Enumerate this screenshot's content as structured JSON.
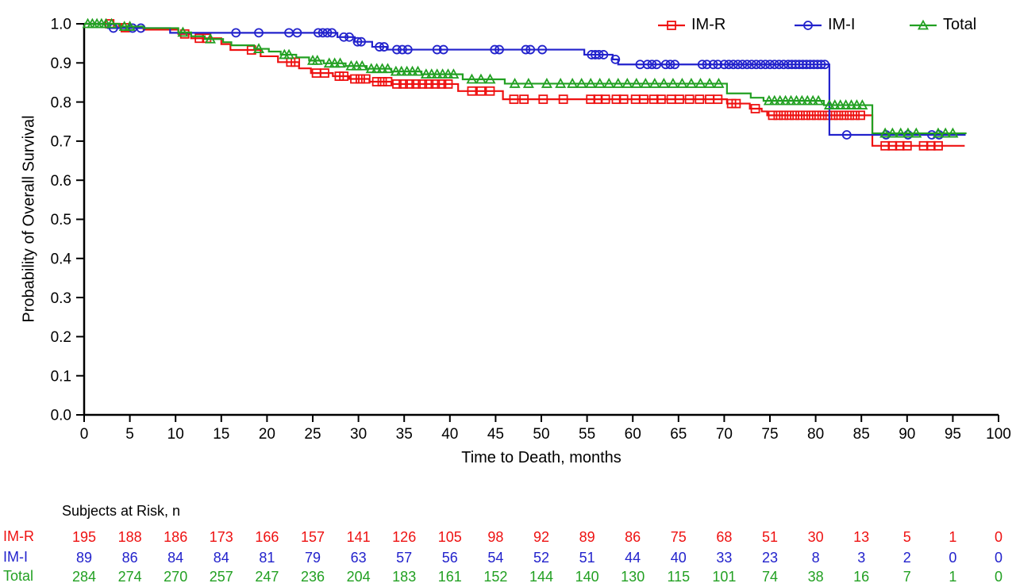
{
  "chart_data": {
    "type": "line",
    "subtype": "kaplan-meier-step-curves",
    "title": "",
    "xlabel": "Time to Death, months",
    "ylabel": "Probability of Overall Survival",
    "xlim": [
      0,
      100
    ],
    "ylim": [
      0.0,
      1.0
    ],
    "xticks": [
      0,
      5,
      10,
      15,
      20,
      25,
      30,
      35,
      40,
      45,
      50,
      55,
      60,
      65,
      70,
      75,
      80,
      85,
      90,
      95,
      100
    ],
    "yticks": [
      0.0,
      0.1,
      0.2,
      0.3,
      0.4,
      0.5,
      0.6,
      0.7,
      0.8,
      0.9,
      1.0
    ],
    "grid": false,
    "legend_position": "top-right",
    "axis_color": "#000000",
    "series": [
      {
        "name": "IM-R",
        "color": "#EE1111",
        "marker": "square",
        "end": 96.3,
        "steps": [
          [
            0,
            1.0
          ],
          [
            3.8,
            0.99
          ],
          [
            6.5,
            0.985
          ],
          [
            10.3,
            0.974
          ],
          [
            11.7,
            0.963
          ],
          [
            15,
            0.948
          ],
          [
            16,
            0.933
          ],
          [
            19.3,
            0.917
          ],
          [
            21.2,
            0.902
          ],
          [
            23.5,
            0.886
          ],
          [
            24.8,
            0.874
          ],
          [
            27.2,
            0.866
          ],
          [
            29,
            0.859
          ],
          [
            31.2,
            0.852
          ],
          [
            33.6,
            0.846
          ],
          [
            40.9,
            0.828
          ],
          [
            45.8,
            0.807
          ],
          [
            70.3,
            0.796
          ],
          [
            72.8,
            0.783
          ],
          [
            74.1,
            0.776
          ],
          [
            74.7,
            0.766
          ],
          [
            86.2,
            0.688
          ]
        ],
        "censors": [
          2.8,
          4.5,
          11,
          12.6,
          13.4,
          18.3,
          22.6,
          23.1,
          25.4,
          26.3,
          27.9,
          28.4,
          29.6,
          30.2,
          30.8,
          32,
          32.6,
          33.2,
          34.2,
          34.9,
          35.6,
          36.3,
          37,
          37.7,
          38.4,
          39.1,
          39.8,
          42.4,
          43.4,
          44.4,
          47,
          48.1,
          50.2,
          52.4,
          55.4,
          56.2,
          57,
          58.2,
          59,
          60.3,
          61.2,
          62.3,
          63.1,
          64.2,
          65.1,
          66.2,
          67.3,
          68.4,
          69.3,
          70.8,
          71.3,
          73.4,
          75.3,
          75.9,
          76.5,
          77.1,
          77.7,
          78.3,
          78.9,
          79.5,
          80.1,
          80.7,
          81.3,
          81.9,
          82.5,
          83.1,
          83.7,
          84.3,
          84.9,
          87.6,
          88.4,
          89.2,
          90,
          91.8,
          92.6,
          93.4
        ]
      },
      {
        "name": "IM-I",
        "color": "#2222CC",
        "marker": "circle",
        "end": 96.4,
        "steps": [
          [
            0,
            1.0
          ],
          [
            2.6,
            0.989
          ],
          [
            9.4,
            0.977
          ],
          [
            27.7,
            0.966
          ],
          [
            29.6,
            0.954
          ],
          [
            31.5,
            0.941
          ],
          [
            33.1,
            0.934
          ],
          [
            54.7,
            0.921
          ],
          [
            57.8,
            0.909
          ],
          [
            58.4,
            0.896
          ],
          [
            81.5,
            0.716
          ]
        ],
        "censors": [
          3.2,
          5.3,
          6.2,
          16.6,
          19.1,
          22.4,
          23.3,
          25.6,
          26.1,
          26.6,
          27.1,
          28.4,
          29,
          29.9,
          30.3,
          32.3,
          32.8,
          34.2,
          34.8,
          35.4,
          38.6,
          39.3,
          44.9,
          45.4,
          48.3,
          48.8,
          50.1,
          55.5,
          55.9,
          56.3,
          56.8,
          58.1,
          60.8,
          61.6,
          62.1,
          62.6,
          63.6,
          64.1,
          64.6,
          67.6,
          68.1,
          68.8,
          69.3,
          70,
          70.5,
          71,
          71.5,
          72,
          72.5,
          73,
          73.5,
          74,
          74.5,
          75,
          75.5,
          76,
          76.5,
          77,
          77.4,
          77.8,
          78.2,
          78.6,
          79,
          79.4,
          79.8,
          80.2,
          80.6,
          81,
          83.4,
          87.7,
          90.1,
          92.7,
          93.5
        ]
      },
      {
        "name": "Total",
        "color": "#22A022",
        "marker": "triangle",
        "end": 96.5,
        "steps": [
          [
            0,
            1.0
          ],
          [
            3.9,
            0.993
          ],
          [
            6.5,
            0.989
          ],
          [
            10.3,
            0.978
          ],
          [
            11.7,
            0.968
          ],
          [
            13.2,
            0.961
          ],
          [
            15.2,
            0.953
          ],
          [
            16.1,
            0.945
          ],
          [
            18.6,
            0.936
          ],
          [
            20.2,
            0.929
          ],
          [
            21.5,
            0.921
          ],
          [
            23.2,
            0.914
          ],
          [
            24.6,
            0.906
          ],
          [
            26.2,
            0.899
          ],
          [
            28.6,
            0.892
          ],
          [
            30.9,
            0.885
          ],
          [
            33.6,
            0.878
          ],
          [
            36.9,
            0.871
          ],
          [
            41.4,
            0.858
          ],
          [
            46,
            0.847
          ],
          [
            70.3,
            0.822
          ],
          [
            72.9,
            0.811
          ],
          [
            74.3,
            0.803
          ],
          [
            80.9,
            0.792
          ],
          [
            86.2,
            0.72
          ]
        ],
        "censors": [
          0.4,
          0.9,
          1.4,
          1.9,
          2.4,
          3.0,
          4.4,
          5.0,
          10.8,
          13.8,
          19.1,
          21.9,
          22.4,
          25,
          25.5,
          26.8,
          27.4,
          28,
          29.2,
          29.8,
          30.4,
          31.4,
          32,
          32.6,
          33.2,
          34.1,
          34.7,
          35.3,
          35.9,
          36.5,
          37.4,
          38,
          38.6,
          39.2,
          39.8,
          40.4,
          42.4,
          43.4,
          44.4,
          47.1,
          48.6,
          50.6,
          52.1,
          53.4,
          54.4,
          55.4,
          56.4,
          57.4,
          58.4,
          59.4,
          60.4,
          61.4,
          62.4,
          63.4,
          64.4,
          65.4,
          66.4,
          67.4,
          68.4,
          69.4,
          74.9,
          75.5,
          76.1,
          76.7,
          77.3,
          77.9,
          78.5,
          79.1,
          79.7,
          80.3,
          81.5,
          82.1,
          82.7,
          83.3,
          83.9,
          84.5,
          85.1,
          87.6,
          88.4,
          89.3,
          90.1,
          91,
          93.4,
          94.2,
          95
        ]
      }
    ],
    "risk_table": {
      "header": "Subjects at Risk, n",
      "times": [
        0,
        5,
        10,
        15,
        20,
        25,
        30,
        35,
        40,
        45,
        50,
        55,
        60,
        65,
        70,
        75,
        80,
        85,
        90,
        95,
        100
      ],
      "rows": [
        {
          "label": "IM-R",
          "color": "#EE1111",
          "counts": [
            195,
            188,
            186,
            173,
            166,
            157,
            141,
            126,
            105,
            98,
            92,
            89,
            86,
            75,
            68,
            51,
            30,
            13,
            5,
            1,
            0
          ]
        },
        {
          "label": "IM-I",
          "color": "#2222CC",
          "counts": [
            89,
            86,
            84,
            84,
            81,
            79,
            63,
            57,
            56,
            54,
            52,
            51,
            44,
            40,
            33,
            23,
            8,
            3,
            2,
            0,
            0
          ]
        },
        {
          "label": "Total",
          "color": "#22A022",
          "counts": [
            284,
            274,
            270,
            257,
            247,
            236,
            204,
            183,
            161,
            152,
            144,
            140,
            130,
            115,
            101,
            74,
            38,
            16,
            7,
            1,
            0
          ]
        }
      ]
    }
  }
}
